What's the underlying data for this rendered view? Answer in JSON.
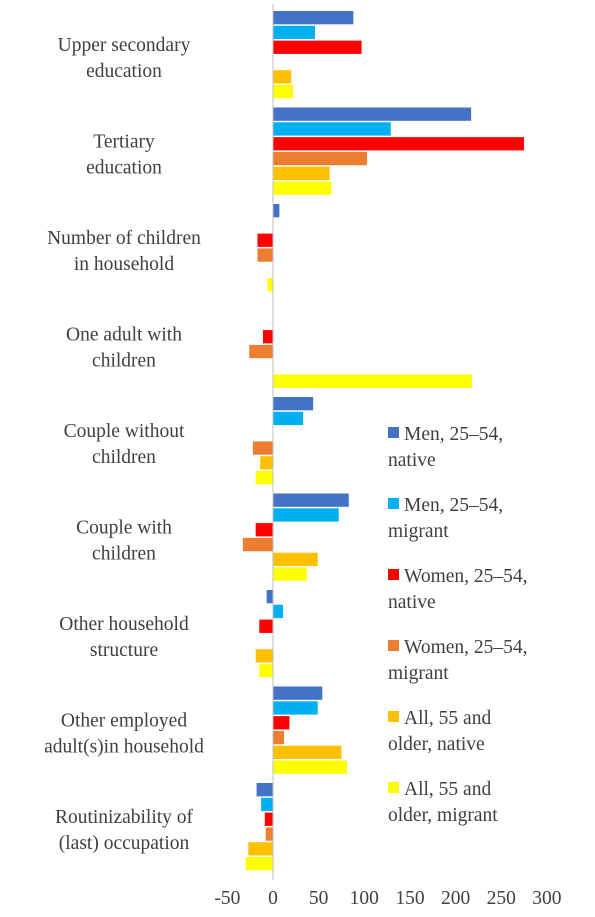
{
  "chart_data": {
    "type": "bar",
    "orientation": "horizontal",
    "title": "",
    "xlabel": "",
    "ylabel": "",
    "xlim": [
      -50,
      300
    ],
    "x_ticks": [
      "-50",
      "0",
      "50",
      "100",
      "150",
      "200",
      "250",
      "300"
    ],
    "x_tick_values": [
      -50,
      0,
      50,
      100,
      150,
      200,
      250,
      300
    ],
    "grid": false,
    "legend_position": "right",
    "categories": [
      [
        "Upper secondary",
        "education"
      ],
      [
        "Tertiary",
        "education"
      ],
      [
        "Number of children",
        "in household"
      ],
      [
        "One adult with",
        "children"
      ],
      [
        "Couple without",
        "children"
      ],
      [
        "Couple with",
        "children"
      ],
      [
        "Other household",
        "structure"
      ],
      [
        "Other employed",
        "adult(s)in household"
      ],
      [
        "Routinizability of",
        "(last) occupation"
      ]
    ],
    "series": [
      {
        "name": [
          "Men, 25–54,",
          "native"
        ],
        "color": "#4472C4",
        "values": [
          88,
          217,
          7,
          null,
          44,
          83,
          -7,
          54,
          -18
        ]
      },
      {
        "name": [
          "Men, 25–54,",
          "migrant"
        ],
        "color": "#00B0F0",
        "values": [
          46,
          129,
          null,
          null,
          33,
          72,
          11,
          49,
          -13
        ]
      },
      {
        "name": [
          "Women, 25–54,",
          "native"
        ],
        "color": "#FF0000",
        "values": [
          97,
          275,
          -17,
          -11,
          null,
          -19,
          -15,
          18,
          -9
        ]
      },
      {
        "name": [
          "Women, 25–54,",
          "migrant"
        ],
        "color": "#ED7D31",
        "values": [
          null,
          103,
          -17,
          -26,
          -22,
          -33,
          null,
          12,
          -8
        ]
      },
      {
        "name": [
          "All, 55 and",
          "older, native"
        ],
        "color": "#FFC000",
        "values": [
          20,
          62,
          null,
          null,
          -14,
          49,
          -19,
          75,
          -27
        ]
      },
      {
        "name": [
          "All, 55 and",
          "older, migrant"
        ],
        "color": "#FFFF00",
        "values": [
          22,
          64,
          -6,
          218,
          -19,
          37,
          -15,
          81,
          -30
        ]
      }
    ]
  }
}
